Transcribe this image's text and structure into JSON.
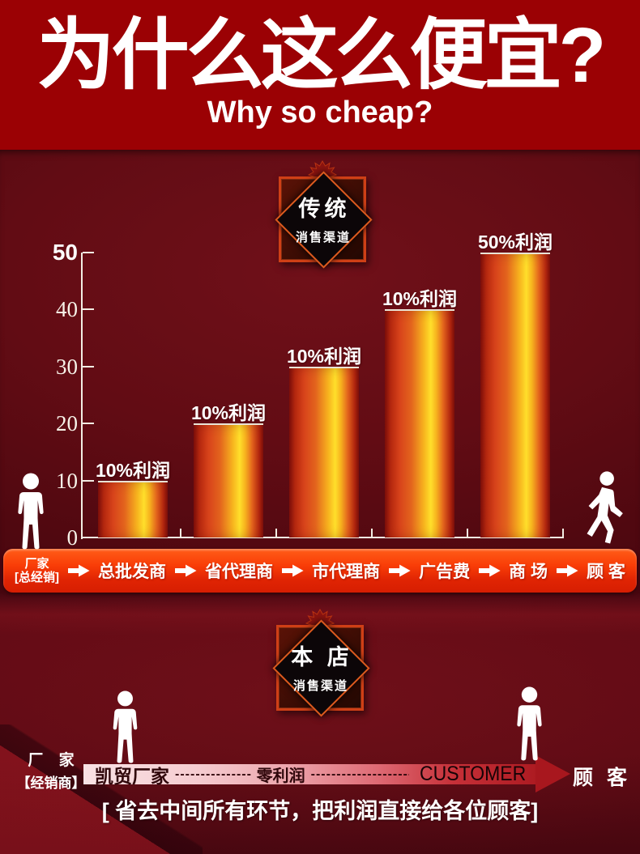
{
  "header": {
    "title": "为什么这么便宜?",
    "subtitle": "Why so cheap?"
  },
  "traditional": {
    "badge_line1": "传统",
    "badge_line2": "消售渠道"
  },
  "chart_data": {
    "type": "bar",
    "title": "传统 消售渠道",
    "categories": [
      "总批发商",
      "省代理商",
      "市代理商",
      "广告费",
      "商场"
    ],
    "values": [
      10,
      20,
      30,
      40,
      50
    ],
    "bar_labels": [
      "10%利润",
      "10%利润",
      "10%利润",
      "10%利润",
      "50%利润"
    ],
    "yticks": [
      0,
      10,
      20,
      30,
      40,
      50
    ],
    "ylim": [
      0,
      50
    ],
    "xlabel": "",
    "ylabel": "",
    "grid": false,
    "legend": "none",
    "axis_color": "#f2ede3",
    "bar_gradient": [
      "#83100b",
      "#d8441b",
      "#ffdf2b",
      "#d8441b",
      "#83100b"
    ]
  },
  "flow_band": {
    "source_line1": "厂家",
    "source_line2": "[总经销]",
    "items": [
      "总批发商",
      "省代理商",
      "市代理商",
      "广告费",
      "商 场",
      "顾 客"
    ]
  },
  "shop": {
    "badge_line1": "本 店",
    "badge_line2": "消售渠道",
    "left_line1": "厂 家",
    "left_line2": "【经销商】",
    "flow_start": "凯贸厂家",
    "dashes1": "--------------------",
    "flow_middle": "零利润",
    "dashes2": "--------------------------",
    "flow_end": "CUSTOMER",
    "flow_target": "顾 客",
    "slogan": "[ 省去中间所有环节，把利润直接给各位顾客]"
  },
  "colors": {
    "header_bg": "#9b0104",
    "section_bg": "#5c0a12",
    "flow_band_red": "#f23104",
    "bar_yellow": "#ffdf2b",
    "bar_red": "#a6200f",
    "direct_band_pink": "#f8dee0",
    "direct_arrow_red": "#a8171e",
    "text_white": "#ffffff"
  }
}
